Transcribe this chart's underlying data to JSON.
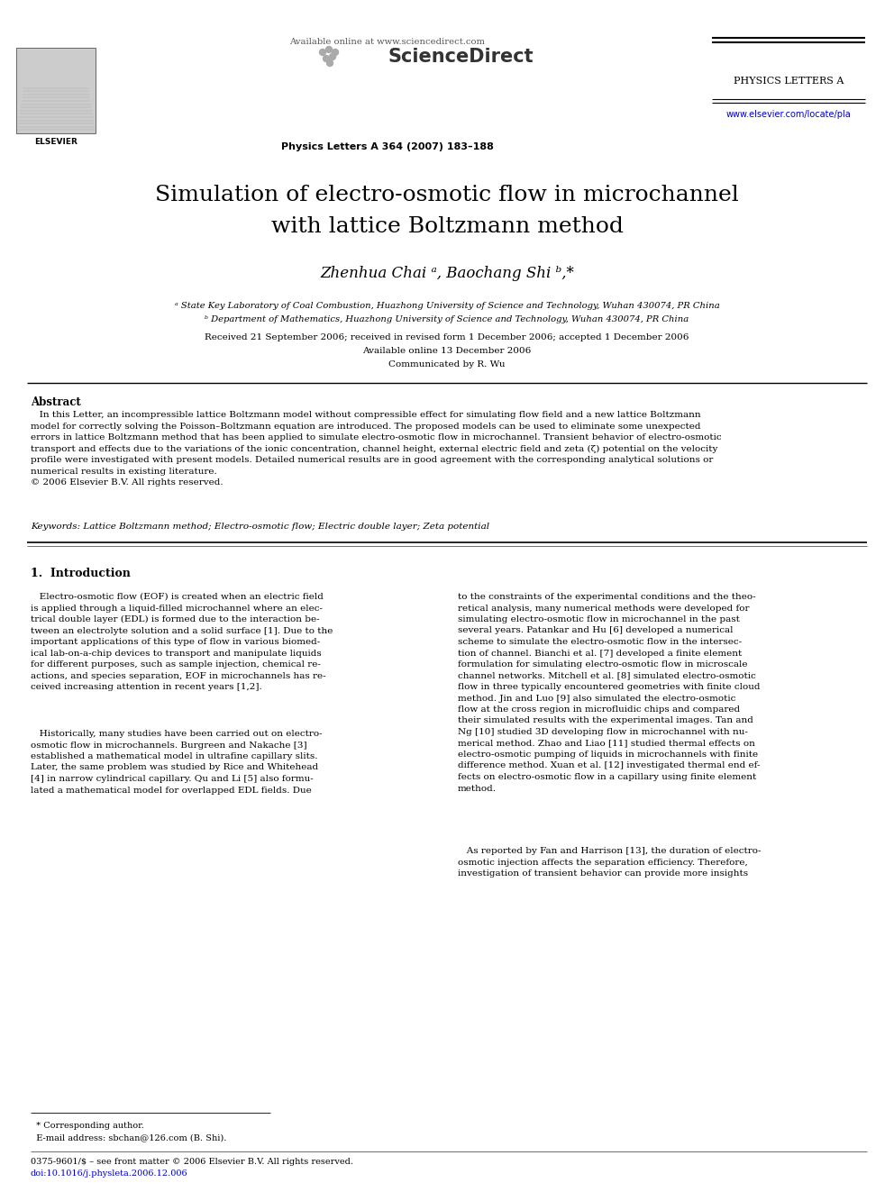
{
  "page_bg": "#ffffff",
  "header": {
    "available_online": "Available online at www.sciencedirect.com",
    "journal_name": "PHYSICS LETTERS A",
    "journal_issue": "Physics Letters A 364 (2007) 183–188",
    "website": "www.elsevier.com/locate/pla"
  },
  "title_line1": "Simulation of electro-osmotic flow in microchannel",
  "title_line2": "with lattice Boltzmann method",
  "authors": "Zhenhua Chai ᵃ, Baochang Shi ᵇ,*",
  "affil_a": "ᵃ State Key Laboratory of Coal Combustion, Huazhong University of Science and Technology, Wuhan 430074, PR China",
  "affil_b": "ᵇ Department of Mathematics, Huazhong University of Science and Technology, Wuhan 430074, PR China",
  "received": "Received 21 September 2006; received in revised form 1 December 2006; accepted 1 December 2006",
  "available": "Available online 13 December 2006",
  "communicated": "Communicated by R. Wu",
  "abstract_title": "Abstract",
  "abstract_text": "   In this Letter, an incompressible lattice Boltzmann model without compressible effect for simulating flow field and a new lattice Boltzmann\nmodel for correctly solving the Poisson–Boltzmann equation are introduced. The proposed models can be used to eliminate some unexpected\nerrors in lattice Boltzmann method that has been applied to simulate electro-osmotic flow in microchannel. Transient behavior of electro-osmotic\ntransport and effects due to the variations of the ionic concentration, channel height, external electric field and zeta (ζ) potential on the velocity\nprofile were investigated with present models. Detailed numerical results are in good agreement with the corresponding analytical solutions or\nnumerical results in existing literature.\n© 2006 Elsevier B.V. All rights reserved.",
  "keywords": "Keywords: Lattice Boltzmann method; Electro-osmotic flow; Electric double layer; Zeta potential",
  "section1_title": "1.  Introduction",
  "intro_left_p1": "   Electro-osmotic flow (EOF) is created when an electric field\nis applied through a liquid-filled microchannel where an elec-\ntrical double layer (EDL) is formed due to the interaction be-\ntween an electrolyte solution and a solid surface [1]. Due to the\nimportant applications of this type of flow in various biomed-\nical lab-on-a-chip devices to transport and manipulate liquids\nfor different purposes, such as sample injection, chemical re-\nactions, and species separation, EOF in microchannels has re-\nceived increasing attention in recent years [1,2].",
  "intro_left_p2": "   Historically, many studies have been carried out on electro-\nosmotic flow in microchannels. Burgreen and Nakache [3]\nestablished a mathematical model in ultrafine capillary slits.\nLater, the same problem was studied by Rice and Whitehead\n[4] in narrow cylindrical capillary. Qu and Li [5] also formu-\nlated a mathematical model for overlapped EDL fields. Due",
  "intro_right_p1": "to the constraints of the experimental conditions and the theo-\nretical analysis, many numerical methods were developed for\nsimulating electro-osmotic flow in microchannel in the past\nseveral years. Patankar and Hu [6] developed a numerical\nscheme to simulate the electro-osmotic flow in the intersec-\ntion of channel. Bianchi et al. [7] developed a finite element\nformulation for simulating electro-osmotic flow in microscale\nchannel networks. Mitchell et al. [8] simulated electro-osmotic\nflow in three typically encountered geometries with finite cloud\nmethod. Jin and Luo [9] also simulated the electro-osmotic\nflow at the cross region in microfluidic chips and compared\ntheir simulated results with the experimental images. Tan and\nNg [10] studied 3D developing flow in microchannel with nu-\nmerical method. Zhao and Liao [11] studied thermal effects on\nelectro-osmotic pumping of liquids in microchannels with finite\ndifference method. Xuan et al. [12] investigated thermal end ef-\nfects on electro-osmotic flow in a capillary using finite element\nmethod.",
  "intro_right_p2": "   As reported by Fan and Harrison [13], the duration of electro-\nosmotic injection affects the separation efficiency. Therefore,\ninvestigation of transient behavior can provide more insights",
  "footnote_star": "  * Corresponding author.",
  "footnote_email": "  E-mail address: sbchan@126.com (B. Shi).",
  "footnote_issn": "0375-9601/$ – see front matter © 2006 Elsevier B.V. All rights reserved.",
  "footnote_doi": "doi:10.1016/j.physleta.2006.12.006"
}
